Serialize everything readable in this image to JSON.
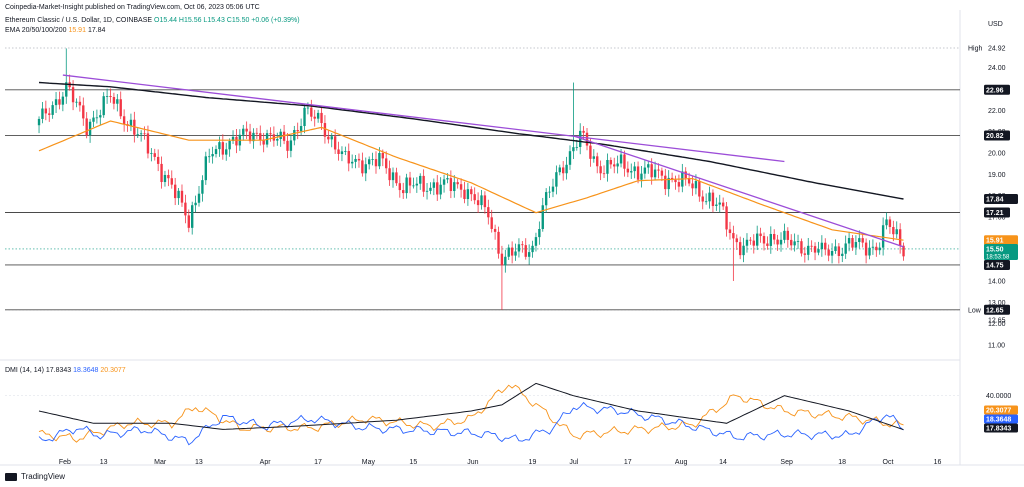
{
  "header": {
    "published": "Coinpedia-Market-Insight published on TradingView.com, Oct 06, 2023 05:06 UTC",
    "symbol": "Ethereum Classic / U.S. Dollar, 1D, COINBASE",
    "ohlc": "O15.44 H15.56 L15.43 C15.50 +0.06 (+0.39%)",
    "ema_label": "EMA 20/50/100/200",
    "ema_val1": "15.91",
    "ema_val2": "17.84",
    "dmi_label": "DMI (14, 14)",
    "dmi_adx": "17.8343",
    "dmi_plus": "18.3648",
    "dmi_minus": "20.3077"
  },
  "footer": {
    "brand": "TradingView"
  },
  "colors": {
    "up": "#089981",
    "down": "#f23645",
    "ema50": "#f7931a",
    "ema200": "#131722",
    "trendline": "#9c4dd8",
    "level": "#787b86",
    "plus_di": "#2962ff",
    "minus_di": "#f7931a",
    "adx": "#131722"
  },
  "chart_data": {
    "type": "candlestick",
    "currency": "USD",
    "price_axis": {
      "ylim": [
        11.0,
        25.2
      ],
      "ticks": [
        "11.00",
        "12.00",
        "13.00",
        "14.00",
        "15.00",
        "16.00",
        "17.00",
        "18.00",
        "19.00",
        "20.00",
        "21.00",
        "22.00",
        "23.00",
        "24.00"
      ]
    },
    "x_axis": {
      "ticks": [
        {
          "label": "Feb",
          "date": "2023-02-01"
        },
        {
          "label": "13",
          "date": "2023-02-13"
        },
        {
          "label": "Mar",
          "date": "2023-03-01"
        },
        {
          "label": "13",
          "date": "2023-03-13"
        },
        {
          "label": "Apr",
          "date": "2023-04-01"
        },
        {
          "label": "17",
          "date": "2023-04-17"
        },
        {
          "label": "May",
          "date": "2023-05-01"
        },
        {
          "label": "15",
          "date": "2023-05-15"
        },
        {
          "label": "Jun",
          "date": "2023-06-01"
        },
        {
          "label": "19",
          "date": "2023-06-19"
        },
        {
          "label": "Jul",
          "date": "2023-07-01"
        },
        {
          "label": "17",
          "date": "2023-07-17"
        },
        {
          "label": "Aug",
          "date": "2023-08-01"
        },
        {
          "label": "14",
          "date": "2023-08-14"
        },
        {
          "label": "Sep",
          "date": "2023-09-01"
        },
        {
          "label": "18",
          "date": "2023-09-18"
        },
        {
          "label": "Oct",
          "date": "2023-10-01"
        },
        {
          "label": "16",
          "date": "2023-10-16"
        }
      ]
    },
    "range": {
      "start": "2023-01-25",
      "end": "2023-10-06"
    },
    "price_anchors": [
      [
        "2023-01-25",
        21.4
      ],
      [
        "2023-02-02",
        23.1
      ],
      [
        "2023-02-08",
        21.3
      ],
      [
        "2023-02-15",
        22.6
      ],
      [
        "2023-02-20",
        21.5
      ],
      [
        "2023-02-28",
        19.8
      ],
      [
        "2023-03-10",
        16.9
      ],
      [
        "2023-03-16",
        19.8
      ],
      [
        "2023-03-22",
        20.6
      ],
      [
        "2023-03-31",
        20.9
      ],
      [
        "2023-04-08",
        20.4
      ],
      [
        "2023-04-13",
        21.9
      ],
      [
        "2023-04-18",
        21.4
      ],
      [
        "2023-04-25",
        19.6
      ],
      [
        "2023-05-05",
        19.6
      ],
      [
        "2023-05-12",
        18.4
      ],
      [
        "2023-05-20",
        18.5
      ],
      [
        "2023-05-30",
        18.4
      ],
      [
        "2023-06-06",
        17.1
      ],
      [
        "2023-06-10",
        15.1
      ],
      [
        "2023-06-19",
        15.6
      ],
      [
        "2023-06-22",
        17.4
      ],
      [
        "2023-06-27",
        19.2
      ],
      [
        "2023-07-03",
        20.8
      ],
      [
        "2023-07-08",
        19.4
      ],
      [
        "2023-07-15",
        19.4
      ],
      [
        "2023-07-25",
        19.0
      ],
      [
        "2023-08-05",
        18.5
      ],
      [
        "2023-08-13",
        17.4
      ],
      [
        "2023-08-17",
        16.0
      ],
      [
        "2023-08-20",
        15.6
      ],
      [
        "2023-08-28",
        16.1
      ],
      [
        "2023-09-02",
        15.8
      ],
      [
        "2023-09-10",
        15.5
      ],
      [
        "2023-09-12",
        15.3
      ],
      [
        "2023-09-20",
        15.7
      ],
      [
        "2023-09-28",
        15.6
      ],
      [
        "2023-10-01",
        16.6
      ],
      [
        "2023-10-03",
        16.3
      ],
      [
        "2023-10-06",
        15.5
      ]
    ],
    "wick_extremes": [
      {
        "date": "2023-06-10",
        "low": 12.65
      },
      {
        "date": "2023-07-01",
        "high": 23.3
      },
      {
        "date": "2023-08-17",
        "low": 14.0
      },
      {
        "date": "2023-02-02",
        "high": 24.9
      }
    ],
    "ema50_anchors": [
      [
        "2023-01-25",
        20.1
      ],
      [
        "2023-02-15",
        21.5
      ],
      [
        "2023-03-10",
        20.6
      ],
      [
        "2023-04-01",
        20.6
      ],
      [
        "2023-04-18",
        21.2
      ],
      [
        "2023-05-10",
        19.8
      ],
      [
        "2023-06-01",
        18.6
      ],
      [
        "2023-06-20",
        17.2
      ],
      [
        "2023-07-05",
        17.9
      ],
      [
        "2023-07-20",
        18.7
      ],
      [
        "2023-08-05",
        18.8
      ],
      [
        "2023-08-25",
        17.6
      ],
      [
        "2023-09-15",
        16.4
      ],
      [
        "2023-10-06",
        15.91
      ]
    ],
    "ema200_anchors": [
      [
        "2023-01-25",
        23.3
      ],
      [
        "2023-02-15",
        23.1
      ],
      [
        "2023-03-15",
        22.6
      ],
      [
        "2023-04-15",
        22.2
      ],
      [
        "2023-05-15",
        21.6
      ],
      [
        "2023-06-15",
        20.9
      ],
      [
        "2023-07-10",
        20.4
      ],
      [
        "2023-08-10",
        19.6
      ],
      [
        "2023-09-10",
        18.6
      ],
      [
        "2023-10-06",
        17.84
      ]
    ],
    "horizontal_levels": [
      {
        "value": 22.96,
        "label": "22.96"
      },
      {
        "value": 20.82,
        "label": "20.82"
      },
      {
        "value": 17.21,
        "label": "17.21"
      },
      {
        "value": 14.75,
        "label": "14.75"
      },
      {
        "value": 12.65,
        "label": "12.65"
      }
    ],
    "high_line": {
      "value": 24.92,
      "label": "High",
      "value_label": "24.92"
    },
    "low_line": {
      "value": 12.65,
      "label": "Low",
      "value_label": "12.65"
    },
    "trendlines": [
      {
        "from": [
          "2023-02-01",
          23.65
        ],
        "to": [
          "2023-09-01",
          19.6
        ]
      },
      {
        "from": [
          "2023-07-01",
          20.8
        ],
        "to": [
          "2023-10-06",
          15.6
        ]
      }
    ],
    "price_labels": [
      {
        "value": 17.84,
        "text": "17.84",
        "color": "#131722"
      },
      {
        "value": 15.91,
        "text": "15.91",
        "color": "#f7931a"
      },
      {
        "value": 15.5,
        "text": "15.50",
        "color": "#089981",
        "sub": "18:53:58"
      }
    ],
    "dmi": {
      "ylim": [
        0,
        60
      ],
      "tick": {
        "value": 40,
        "label": "40.0000"
      },
      "plus_di_anchors": [
        [
          "2023-01-25",
          10
        ],
        [
          "2023-02-05",
          19
        ],
        [
          "2023-02-12",
          14
        ],
        [
          "2023-02-25",
          18
        ],
        [
          "2023-03-10",
          10
        ],
        [
          "2023-03-20",
          26
        ],
        [
          "2023-04-01",
          20
        ],
        [
          "2023-04-15",
          25
        ],
        [
          "2023-05-01",
          19
        ],
        [
          "2023-05-20",
          17
        ],
        [
          "2023-06-05",
          15
        ],
        [
          "2023-06-15",
          11
        ],
        [
          "2023-06-25",
          19
        ],
        [
          "2023-07-01",
          33
        ],
        [
          "2023-07-15",
          30
        ],
        [
          "2023-08-01",
          22
        ],
        [
          "2023-08-18",
          13
        ],
        [
          "2023-09-01",
          15
        ],
        [
          "2023-09-20",
          14
        ],
        [
          "2023-10-01",
          28
        ],
        [
          "2023-10-06",
          18.36
        ]
      ],
      "minus_di_anchors": [
        [
          "2023-01-25",
          15
        ],
        [
          "2023-02-05",
          12
        ],
        [
          "2023-02-20",
          22
        ],
        [
          "2023-03-05",
          22
        ],
        [
          "2023-03-12",
          33
        ],
        [
          "2023-03-25",
          19
        ],
        [
          "2023-04-15",
          19
        ],
        [
          "2023-05-01",
          25
        ],
        [
          "2023-05-20",
          20
        ],
        [
          "2023-06-01",
          25
        ],
        [
          "2023-06-12",
          48
        ],
        [
          "2023-06-20",
          34
        ],
        [
          "2023-07-01",
          14
        ],
        [
          "2023-07-15",
          17
        ],
        [
          "2023-08-05",
          21
        ],
        [
          "2023-08-18",
          40
        ],
        [
          "2023-09-01",
          30
        ],
        [
          "2023-09-20",
          26
        ],
        [
          "2023-10-06",
          20.31
        ]
      ],
      "adx_anchors": [
        [
          "2023-01-25",
          30
        ],
        [
          "2023-02-10",
          22
        ],
        [
          "2023-03-05",
          22
        ],
        [
          "2023-03-20",
          18
        ],
        [
          "2023-04-10",
          20
        ],
        [
          "2023-05-10",
          24
        ],
        [
          "2023-06-01",
          30
        ],
        [
          "2023-06-10",
          34
        ],
        [
          "2023-06-20",
          48
        ],
        [
          "2023-07-01",
          40
        ],
        [
          "2023-07-20",
          30
        ],
        [
          "2023-08-15",
          22
        ],
        [
          "2023-09-01",
          40
        ],
        [
          "2023-09-20",
          30
        ],
        [
          "2023-10-06",
          17.83
        ]
      ]
    }
  }
}
